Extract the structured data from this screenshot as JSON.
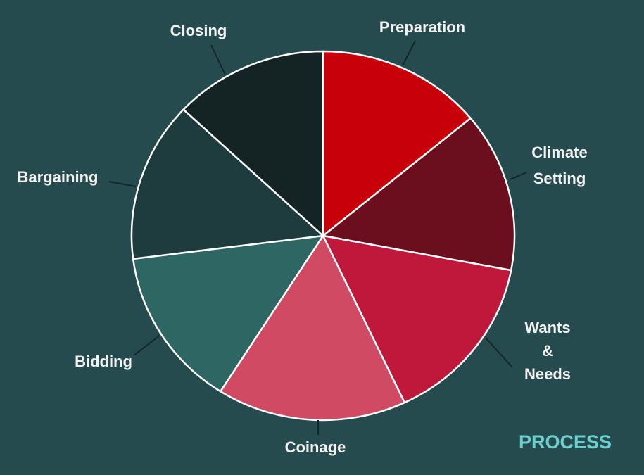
{
  "chart_data": {
    "type": "pie",
    "annotation": "PROCESS",
    "categories": [
      "Preparation",
      "Climate Setting",
      "Wants & Needs",
      "Coinage",
      "Bidding",
      "Bargaining",
      "Closing"
    ],
    "values": [
      14,
      14,
      15,
      16,
      14,
      14,
      13
    ],
    "colors": [
      "#c8000a",
      "#6b0f1f",
      "#c0183a",
      "#d04a63",
      "#2e6663",
      "#1e3c3e",
      "#142323"
    ],
    "annotation_color": "#6ccfcf",
    "background": "#254b4e"
  }
}
